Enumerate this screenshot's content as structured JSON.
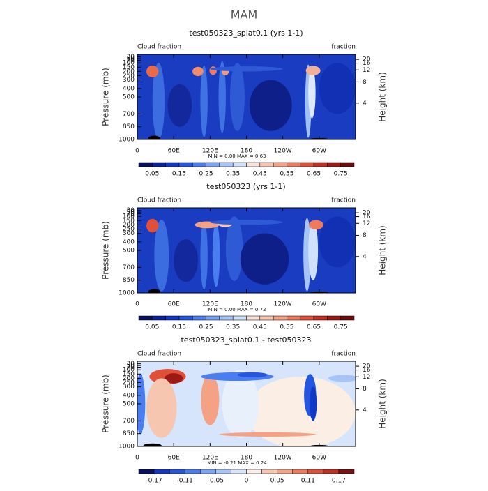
{
  "title": "MAM",
  "chart_data": [
    {
      "type": "contour",
      "title": "test050323_splat0.1 (yrs 1-1)",
      "left_label": "Cloud fraction",
      "right_label": "fraction",
      "ylabel": "Pressure (mb)",
      "y2label": "Height (km)",
      "stats": "MIN =   0.00   MAX =    0.63",
      "xlim": [
        0,
        360
      ],
      "xticks": [
        0,
        {
          "value": 60,
          "label": "60E"
        },
        {
          "value": 120,
          "label": "120E"
        },
        180,
        {
          "value": 240,
          "label": "120W"
        },
        {
          "value": 300,
          "label": "60W"
        }
      ],
      "ylim": [
        1000,
        0
      ],
      "yticks": [
        30,
        50,
        70,
        100,
        150,
        200,
        250,
        300,
        400,
        500,
        700,
        850,
        1000
      ],
      "y2ticks": [
        4,
        8,
        12,
        16,
        20
      ],
      "colorbar_labels": [
        0.05,
        0.15,
        0.25,
        0.35,
        0.45,
        0.55,
        0.65,
        0.75
      ],
      "colorbar_colors": [
        "#08105e",
        "#0a1f9a",
        "#1238c8",
        "#2556e0",
        "#4a7ef0",
        "#7aa4f5",
        "#a6c4f8",
        "#cfe0fb",
        "#f6e4d8",
        "#f7c6b0",
        "#f4a184",
        "#ef7a5c",
        "#e24f37",
        "#c42f22",
        "#9c1a16",
        "#6b0d0d"
      ]
    },
    {
      "type": "contour",
      "title": "test050323 (yrs 1-1)",
      "left_label": "Cloud fraction",
      "right_label": "fraction",
      "ylabel": "Pressure (mb)",
      "y2label": "Height (km)",
      "stats": "MIN =   0.00   MAX =    0.72",
      "xlim": [
        0,
        360
      ],
      "xticks": [
        0,
        {
          "value": 60,
          "label": "60E"
        },
        {
          "value": 120,
          "label": "120E"
        },
        180,
        {
          "value": 240,
          "label": "120W"
        },
        {
          "value": 300,
          "label": "60W"
        }
      ],
      "ylim": [
        1000,
        0
      ],
      "yticks": [
        30,
        50,
        70,
        100,
        150,
        200,
        250,
        300,
        400,
        500,
        700,
        850,
        1000
      ],
      "y2ticks": [
        4,
        8,
        12,
        16,
        20
      ],
      "colorbar_labels": [
        0.05,
        0.15,
        0.25,
        0.35,
        0.45,
        0.55,
        0.65,
        0.75
      ],
      "colorbar_colors": [
        "#08105e",
        "#0a1f9a",
        "#1238c8",
        "#2556e0",
        "#4a7ef0",
        "#7aa4f5",
        "#a6c4f8",
        "#cfe0fb",
        "#f6e4d8",
        "#f7c6b0",
        "#f4a184",
        "#ef7a5c",
        "#e24f37",
        "#c42f22",
        "#9c1a16",
        "#6b0d0d"
      ]
    },
    {
      "type": "contour",
      "title": "test050323_splat0.1 - test050323",
      "left_label": "Cloud fraction",
      "right_label": "fraction",
      "ylabel": "Pressure (mb)",
      "y2label": "Height (km)",
      "stats": "MIN =  -0.21   MAX =    0.24",
      "xlim": [
        0,
        360
      ],
      "xticks": [
        0,
        {
          "value": 60,
          "label": "60E"
        },
        {
          "value": 120,
          "label": "120E"
        },
        180,
        {
          "value": 240,
          "label": "120W"
        },
        {
          "value": 300,
          "label": "60W"
        }
      ],
      "ylim": [
        1000,
        0
      ],
      "yticks": [
        30,
        50,
        70,
        100,
        150,
        200,
        250,
        300,
        400,
        500,
        700,
        850,
        1000
      ],
      "y2ticks": [
        4,
        8,
        12,
        16,
        20
      ],
      "colorbar_labels": [
        -0.17,
        -0.11,
        -0.05,
        0,
        0.05,
        0.11,
        0.17
      ],
      "colorbar_colors": [
        "#08105e",
        "#1238c8",
        "#2556e0",
        "#4a7ef0",
        "#7aa4f5",
        "#a6c4f8",
        "#d6e5fb",
        "#fbeee4",
        "#f7c6b0",
        "#f4a184",
        "#ef7a5c",
        "#e24f37",
        "#c42f22",
        "#7a1010"
      ]
    }
  ]
}
